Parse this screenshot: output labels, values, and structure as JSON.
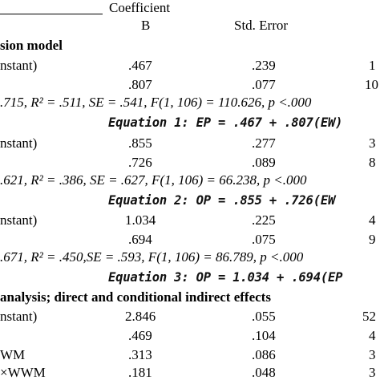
{
  "header": {
    "coefficient": "Coefficient",
    "b": "B",
    "std_error": "Std. Error"
  },
  "sections": {
    "regression": "sion model",
    "analysis": " analysis; direct and conditional indirect effects"
  },
  "rows": [
    {
      "label": "nstant)",
      "b": ".467",
      "se": ".239",
      "t": "1"
    },
    {
      "label": "",
      "b": ".807",
      "se": ".077",
      "t": "10"
    },
    {
      "label": "nstant)",
      "b": ".855",
      "se": ".277",
      "t": "3"
    },
    {
      "label": "",
      "b": ".726",
      "se": ".089",
      "t": "8"
    },
    {
      "label": "nstant)",
      "b": "1.034",
      "se": ".225",
      "t": "4"
    },
    {
      "label": "",
      "b": ".694",
      "se": ".075",
      "t": "9"
    },
    {
      "label": "nstant)",
      "b": "2.846",
      "se": ".055",
      "t": "52"
    },
    {
      "label": "",
      "b": ".469",
      "se": ".104",
      "t": "4"
    },
    {
      "label": "WM",
      "b": ".313",
      "se": ".086",
      "t": "3"
    },
    {
      "label": "×WWM",
      "b": ".181",
      "se": ".048",
      "t": "3"
    }
  ],
  "stats": [
    ".715, R² = .511, SE = .541,  F(1, 106) = 110.626, p <.000",
    ".621, R² = .386, SE = .627, F(1, 106) = 66.238, p <.000",
    ".671, R² = .450,SE = .593, F(1, 106) = 86.789, p <.000"
  ],
  "equations": [
    "Equation 1: EP = .467 + .807(EW)",
    "Equation 2: OP = .855 + .726(EW",
    "Equation 3: OP = 1.034 + .694(EP"
  ]
}
